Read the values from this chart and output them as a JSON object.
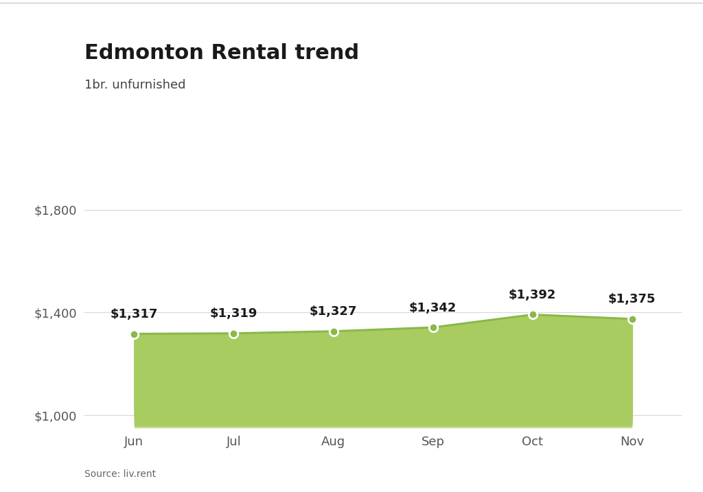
{
  "title": "Edmonton Rental trend",
  "subtitle": "1br. unfurnished",
  "source": "Source: liv.rent",
  "months": [
    "Jun",
    "Jul",
    "Aug",
    "Sep",
    "Oct",
    "Nov"
  ],
  "values": [
    1317,
    1319,
    1327,
    1342,
    1392,
    1375
  ],
  "labels": [
    "$1,317",
    "$1,319",
    "$1,327",
    "$1,342",
    "$1,392",
    "$1,375"
  ],
  "ylim": [
    950,
    1870
  ],
  "yticks": [
    1000,
    1400,
    1800
  ],
  "ytick_labels": [
    "$1,000",
    "$1,400",
    "$1,800"
  ],
  "line_color": "#8ab84a",
  "fill_color": "#a8cc60",
  "marker_color": "#8ab84a",
  "bg_color": "#ffffff",
  "title_fontsize": 22,
  "subtitle_fontsize": 13,
  "label_fontsize": 13,
  "tick_fontsize": 13,
  "source_fontsize": 10,
  "title_color": "#1a1a1a",
  "subtitle_color": "#444444",
  "tick_color": "#555555",
  "source_color": "#666666",
  "grid_color": "#d8d8d8"
}
